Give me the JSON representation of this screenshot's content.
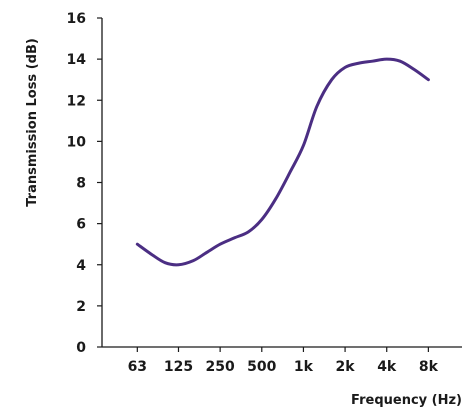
{
  "colors": {
    "series": "#4b2e83",
    "axis": "#1a1a1a"
  },
  "chart_data": {
    "type": "line",
    "xlabel": "Frequency (Hz)",
    "ylabel": "Transmission Loss (dB)",
    "x_scale": "log",
    "x_ticks": [
      "63",
      "125",
      "250",
      "500",
      "1k",
      "2k",
      "4k",
      "8k"
    ],
    "x_tick_values": [
      63,
      125,
      250,
      500,
      1000,
      2000,
      4000,
      8000
    ],
    "y_ticks": [
      "0",
      "2",
      "4",
      "6",
      "8",
      "10",
      "12",
      "14",
      "16"
    ],
    "ylim": [
      0,
      16
    ],
    "xlim": [
      35,
      14000
    ],
    "grid": false,
    "series": [
      {
        "x": [
          63,
          80,
          100,
          125,
          160,
          200,
          250,
          315,
          400,
          500,
          630,
          800,
          1000,
          1250,
          1600,
          2000,
          2500,
          3150,
          4000,
          5000,
          6300,
          8000
        ],
        "values": [
          5.0,
          4.5,
          4.1,
          4.0,
          4.2,
          4.6,
          5.0,
          5.3,
          5.6,
          6.2,
          7.2,
          8.5,
          9.8,
          11.7,
          13.0,
          13.6,
          13.8,
          13.9,
          14.0,
          13.9,
          13.5,
          13.0
        ]
      }
    ]
  }
}
